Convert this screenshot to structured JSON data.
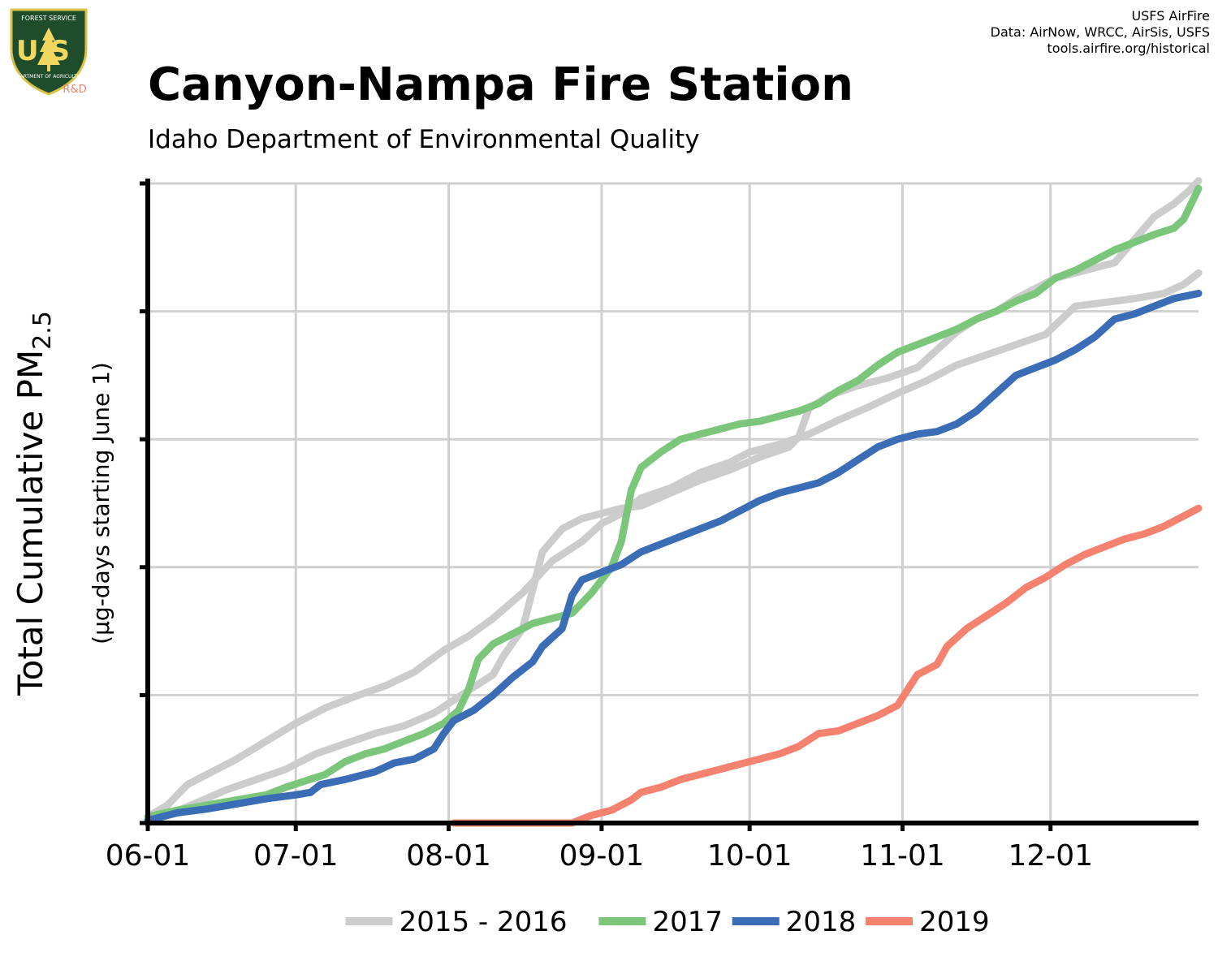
{
  "header": {
    "title": "Canyon-Nampa Fire Station",
    "subtitle": "Idaho Department of Environmental Quality"
  },
  "credits": {
    "line1": "USFS AirFire",
    "line2": "Data: AirNow, WRCC, AirSis, USFS",
    "line3": "tools.airfire.org/historical"
  },
  "logo": {
    "top_text": "FOREST SERVICE",
    "mark": "US",
    "bottom_text": "DEPARTMENT OF AGRICULTURE",
    "badge": "R&D",
    "colors": {
      "shield": "#1f4d2b",
      "border": "#d9c24a",
      "badge": "#e8836f"
    }
  },
  "chart_data": {
    "type": "line",
    "ylabel": "Total Cumulative PM",
    "ylabel_subscript": "2.5",
    "ylabel_sub": "(µg-days starting June 1)",
    "x_tick_labels": [
      "06-01",
      "07-01",
      "08-01",
      "09-01",
      "10-01",
      "11-01",
      "12-01"
    ],
    "x_tick_days": [
      0,
      30,
      61,
      92,
      122,
      153,
      183
    ],
    "xlim_days": [
      0,
      213
    ],
    "ylim": [
      0,
      5
    ],
    "y_ticks": [
      0,
      1,
      2,
      3,
      4,
      5
    ],
    "y_tick_labels_shown": false,
    "grid": true,
    "legend_position": "bottom",
    "series": [
      {
        "name": "2015 - 2016",
        "color": "#cccccc",
        "points": [
          [
            0,
            0.05
          ],
          [
            4,
            0.14
          ],
          [
            8,
            0.3
          ],
          [
            12,
            0.38
          ],
          [
            18,
            0.5
          ],
          [
            24,
            0.64
          ],
          [
            30,
            0.78
          ],
          [
            36,
            0.9
          ],
          [
            42,
            0.99
          ],
          [
            48,
            1.07
          ],
          [
            54,
            1.18
          ],
          [
            60,
            1.35
          ],
          [
            65,
            1.46
          ],
          [
            70,
            1.6
          ],
          [
            76,
            1.8
          ],
          [
            82,
            2.05
          ],
          [
            88,
            2.2
          ],
          [
            92,
            2.34
          ],
          [
            96,
            2.42
          ],
          [
            100,
            2.54
          ],
          [
            106,
            2.62
          ],
          [
            112,
            2.74
          ],
          [
            118,
            2.82
          ],
          [
            122,
            2.9
          ],
          [
            128,
            2.96
          ],
          [
            134,
            3.04
          ],
          [
            140,
            3.15
          ],
          [
            146,
            3.25
          ],
          [
            152,
            3.36
          ],
          [
            158,
            3.46
          ],
          [
            164,
            3.58
          ],
          [
            170,
            3.66
          ],
          [
            176,
            3.74
          ],
          [
            182,
            3.82
          ],
          [
            188,
            4.04
          ],
          [
            194,
            4.07
          ],
          [
            200,
            4.1
          ],
          [
            206,
            4.14
          ],
          [
            210,
            4.21
          ],
          [
            213,
            4.3
          ]
        ]
      },
      {
        "name": "2015 - 2016",
        "color": "#cccccc",
        "points": [
          [
            0,
            0
          ],
          [
            5,
            0.08
          ],
          [
            10,
            0.16
          ],
          [
            16,
            0.26
          ],
          [
            22,
            0.34
          ],
          [
            28,
            0.42
          ],
          [
            34,
            0.54
          ],
          [
            40,
            0.62
          ],
          [
            46,
            0.7
          ],
          [
            52,
            0.76
          ],
          [
            58,
            0.86
          ],
          [
            62,
            0.96
          ],
          [
            66,
            1.06
          ],
          [
            70,
            1.16
          ],
          [
            72,
            1.3
          ],
          [
            76,
            1.52
          ],
          [
            80,
            2.12
          ],
          [
            84,
            2.3
          ],
          [
            88,
            2.38
          ],
          [
            92,
            2.42
          ],
          [
            96,
            2.46
          ],
          [
            100,
            2.48
          ],
          [
            106,
            2.58
          ],
          [
            112,
            2.68
          ],
          [
            118,
            2.76
          ],
          [
            124,
            2.86
          ],
          [
            130,
            2.94
          ],
          [
            132,
            3.02
          ],
          [
            134,
            3.24
          ],
          [
            138,
            3.34
          ],
          [
            144,
            3.42
          ],
          [
            150,
            3.48
          ],
          [
            156,
            3.56
          ],
          [
            160,
            3.7
          ],
          [
            164,
            3.84
          ],
          [
            168,
            3.94
          ],
          [
            172,
            4.0
          ],
          [
            176,
            4.1
          ],
          [
            180,
            4.18
          ],
          [
            184,
            4.26
          ],
          [
            190,
            4.32
          ],
          [
            196,
            4.38
          ],
          [
            200,
            4.56
          ],
          [
            204,
            4.74
          ],
          [
            208,
            4.84
          ],
          [
            211,
            4.94
          ],
          [
            213,
            5.02
          ]
        ]
      },
      {
        "name": "2017",
        "color": "#7bc67b",
        "points": [
          [
            0,
            0.05
          ],
          [
            6,
            0.1
          ],
          [
            12,
            0.14
          ],
          [
            18,
            0.18
          ],
          [
            24,
            0.22
          ],
          [
            28,
            0.28
          ],
          [
            32,
            0.33
          ],
          [
            36,
            0.38
          ],
          [
            40,
            0.48
          ],
          [
            44,
            0.54
          ],
          [
            48,
            0.58
          ],
          [
            52,
            0.64
          ],
          [
            56,
            0.7
          ],
          [
            60,
            0.78
          ],
          [
            63,
            0.88
          ],
          [
            65,
            1.04
          ],
          [
            67,
            1.28
          ],
          [
            70,
            1.4
          ],
          [
            74,
            1.48
          ],
          [
            78,
            1.56
          ],
          [
            82,
            1.6
          ],
          [
            86,
            1.64
          ],
          [
            90,
            1.8
          ],
          [
            94,
            2.0
          ],
          [
            96,
            2.2
          ],
          [
            98,
            2.6
          ],
          [
            100,
            2.78
          ],
          [
            104,
            2.9
          ],
          [
            108,
            3.0
          ],
          [
            112,
            3.04
          ],
          [
            116,
            3.08
          ],
          [
            120,
            3.12
          ],
          [
            124,
            3.14
          ],
          [
            128,
            3.18
          ],
          [
            132,
            3.22
          ],
          [
            136,
            3.28
          ],
          [
            140,
            3.38
          ],
          [
            144,
            3.46
          ],
          [
            148,
            3.58
          ],
          [
            152,
            3.68
          ],
          [
            156,
            3.74
          ],
          [
            160,
            3.8
          ],
          [
            164,
            3.86
          ],
          [
            168,
            3.94
          ],
          [
            172,
            4.0
          ],
          [
            176,
            4.08
          ],
          [
            180,
            4.14
          ],
          [
            184,
            4.26
          ],
          [
            188,
            4.32
          ],
          [
            192,
            4.4
          ],
          [
            196,
            4.48
          ],
          [
            200,
            4.54
          ],
          [
            204,
            4.6
          ],
          [
            208,
            4.65
          ],
          [
            210,
            4.72
          ],
          [
            212,
            4.88
          ],
          [
            213,
            4.96
          ]
        ]
      },
      {
        "name": "2018",
        "color": "#3a6db5",
        "points": [
          [
            0,
            0.02
          ],
          [
            6,
            0.08
          ],
          [
            12,
            0.11
          ],
          [
            18,
            0.15
          ],
          [
            24,
            0.19
          ],
          [
            30,
            0.22
          ],
          [
            33,
            0.24
          ],
          [
            35,
            0.3
          ],
          [
            40,
            0.34
          ],
          [
            46,
            0.4
          ],
          [
            50,
            0.47
          ],
          [
            54,
            0.5
          ],
          [
            58,
            0.58
          ],
          [
            60,
            0.7
          ],
          [
            62,
            0.8
          ],
          [
            66,
            0.88
          ],
          [
            70,
            1.0
          ],
          [
            74,
            1.14
          ],
          [
            78,
            1.26
          ],
          [
            80,
            1.38
          ],
          [
            84,
            1.52
          ],
          [
            86,
            1.78
          ],
          [
            88,
            1.9
          ],
          [
            92,
            1.96
          ],
          [
            96,
            2.02
          ],
          [
            100,
            2.12
          ],
          [
            104,
            2.18
          ],
          [
            108,
            2.24
          ],
          [
            112,
            2.3
          ],
          [
            116,
            2.36
          ],
          [
            120,
            2.44
          ],
          [
            124,
            2.52
          ],
          [
            128,
            2.58
          ],
          [
            132,
            2.62
          ],
          [
            136,
            2.66
          ],
          [
            140,
            2.74
          ],
          [
            144,
            2.84
          ],
          [
            148,
            2.94
          ],
          [
            152,
            3.0
          ],
          [
            156,
            3.04
          ],
          [
            160,
            3.06
          ],
          [
            164,
            3.12
          ],
          [
            168,
            3.22
          ],
          [
            172,
            3.36
          ],
          [
            176,
            3.5
          ],
          [
            180,
            3.56
          ],
          [
            184,
            3.62
          ],
          [
            188,
            3.7
          ],
          [
            192,
            3.8
          ],
          [
            196,
            3.94
          ],
          [
            200,
            3.98
          ],
          [
            204,
            4.04
          ],
          [
            208,
            4.1
          ],
          [
            213,
            4.14
          ]
        ]
      },
      {
        "name": "2019",
        "color": "#f4826f",
        "points": [
          [
            62,
            0
          ],
          [
            70,
            0
          ],
          [
            80,
            0
          ],
          [
            86,
            0
          ],
          [
            90,
            0.06
          ],
          [
            94,
            0.1
          ],
          [
            98,
            0.18
          ],
          [
            100,
            0.24
          ],
          [
            104,
            0.28
          ],
          [
            108,
            0.34
          ],
          [
            112,
            0.38
          ],
          [
            116,
            0.42
          ],
          [
            120,
            0.46
          ],
          [
            124,
            0.5
          ],
          [
            128,
            0.54
          ],
          [
            132,
            0.6
          ],
          [
            136,
            0.7
          ],
          [
            140,
            0.72
          ],
          [
            144,
            0.78
          ],
          [
            148,
            0.84
          ],
          [
            152,
            0.92
          ],
          [
            156,
            1.16
          ],
          [
            160,
            1.24
          ],
          [
            162,
            1.38
          ],
          [
            166,
            1.52
          ],
          [
            170,
            1.62
          ],
          [
            174,
            1.72
          ],
          [
            178,
            1.84
          ],
          [
            182,
            1.92
          ],
          [
            186,
            2.02
          ],
          [
            190,
            2.1
          ],
          [
            194,
            2.16
          ],
          [
            198,
            2.22
          ],
          [
            202,
            2.26
          ],
          [
            206,
            2.32
          ],
          [
            210,
            2.4
          ],
          [
            213,
            2.46
          ]
        ]
      }
    ]
  }
}
